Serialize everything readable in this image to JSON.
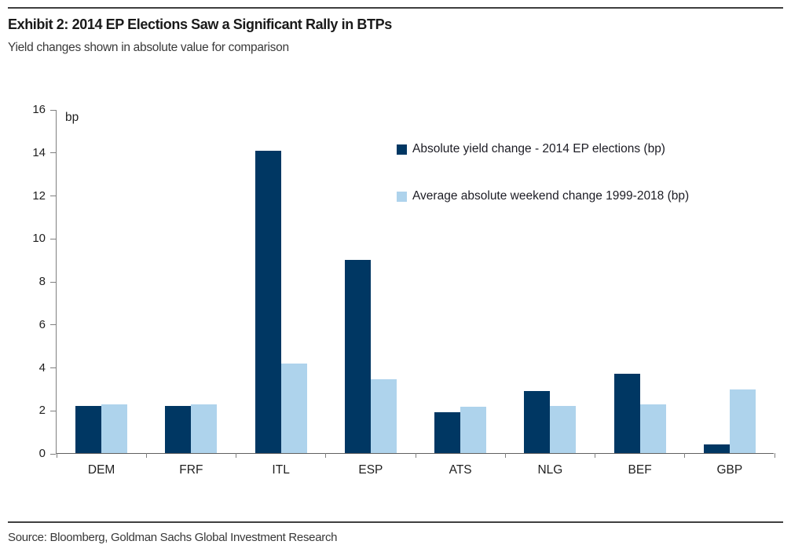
{
  "report": {
    "title": "Exhibit 2: 2014 EP Elections Saw a Significant Rally in BTPs",
    "subtitle": "Yield changes shown in absolute value for comparison",
    "source": "Source: Bloomberg, Goldman Sachs Global Investment Research"
  },
  "chart_data": {
    "type": "bar",
    "title": "Exhibit 2: 2014 EP Elections Saw a Significant Rally in BTPs",
    "subtitle": "Yield changes shown in absolute value for comparison",
    "unit_label": "bp",
    "xlabel": "",
    "ylabel": "bp",
    "categories": [
      "DEM",
      "FRF",
      "ITL",
      "ESP",
      "ATS",
      "NLG",
      "BEF",
      "GBP"
    ],
    "series": [
      {
        "name": "Absolute yield change - 2014 EP elections (bp)",
        "color": "#003763",
        "values": [
          2.2,
          2.2,
          14.05,
          9.0,
          1.9,
          2.9,
          3.7,
          0.4
        ]
      },
      {
        "name": "Average absolute weekend change 1999-2018 (bp)",
        "color": "#AED3EC",
        "values": [
          2.25,
          2.25,
          4.15,
          3.45,
          2.15,
          2.2,
          2.25,
          2.95
        ]
      }
    ],
    "ylim": [
      0,
      16
    ],
    "ytick_step": 2,
    "grid": false,
    "legend_position": "upper-right-inside"
  }
}
